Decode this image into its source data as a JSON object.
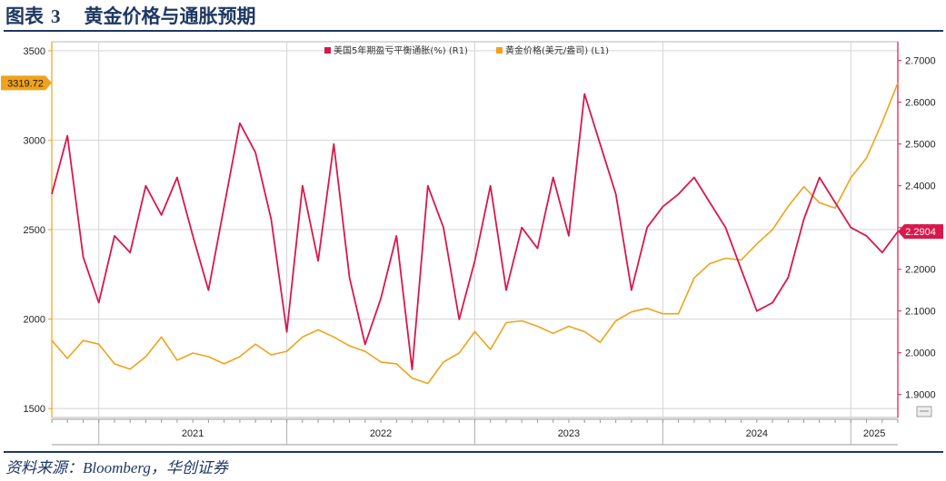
{
  "figure": {
    "number_label": "图表",
    "number": "3",
    "title": "黄金价格与通胀预期",
    "source": "资料来源：Bloomberg，华创证券"
  },
  "colors": {
    "gold": "#f0a31a",
    "inflation": "#d9184b",
    "title": "#1f3864",
    "tag_text": "#ffffff"
  },
  "chart_data": {
    "type": "line",
    "legend": [
      "美国5年期盈亏平衡通胀(%) (R1)",
      "黄金价格(美元/盎司) (L1)"
    ],
    "legend_position": "top-center",
    "grid": true,
    "x_tick_labels": [
      "2021",
      "2022",
      "2023",
      "2024",
      "2025"
    ],
    "x_range": [
      "2020-10",
      "2025-04"
    ],
    "left_axis": {
      "ticks": [
        1500,
        2000,
        2500,
        3000,
        3500
      ],
      "ylim": [
        1450,
        3550
      ],
      "last_value_tag": "3319.72"
    },
    "right_axis": {
      "ticks": [
        "1.9000",
        "2.0000",
        "2.1000",
        "2.2000",
        "2.3000",
        "2.4000",
        "2.5000",
        "2.6000",
        "2.7000"
      ],
      "ylim": [
        1.845,
        2.745
      ],
      "last_value_tag": "2.2904"
    },
    "series": [
      {
        "name": "黄金价格(美元/盎司) (L1)",
        "axis": "left",
        "color": "#f0a31a",
        "x": [
          "2020-10",
          "2020-11",
          "2020-12",
          "2021-01",
          "2021-02",
          "2021-03",
          "2021-04",
          "2021-05",
          "2021-06",
          "2021-07",
          "2021-08",
          "2021-09",
          "2021-10",
          "2021-11",
          "2021-12",
          "2022-01",
          "2022-02",
          "2022-03",
          "2022-04",
          "2022-05",
          "2022-06",
          "2022-07",
          "2022-08",
          "2022-09",
          "2022-10",
          "2022-11",
          "2022-12",
          "2023-01",
          "2023-02",
          "2023-03",
          "2023-04",
          "2023-05",
          "2023-06",
          "2023-07",
          "2023-08",
          "2023-09",
          "2023-10",
          "2023-11",
          "2023-12",
          "2024-01",
          "2024-02",
          "2024-03",
          "2024-04",
          "2024-05",
          "2024-06",
          "2024-07",
          "2024-08",
          "2024-09",
          "2024-10",
          "2024-11",
          "2024-12",
          "2025-01",
          "2025-02",
          "2025-03",
          "2025-04"
        ],
        "values": [
          1880,
          1780,
          1880,
          1860,
          1750,
          1720,
          1790,
          1900,
          1770,
          1810,
          1790,
          1750,
          1790,
          1860,
          1800,
          1820,
          1900,
          1940,
          1900,
          1850,
          1820,
          1760,
          1750,
          1670,
          1640,
          1760,
          1810,
          1930,
          1830,
          1980,
          1990,
          1960,
          1920,
          1960,
          1930,
          1870,
          1990,
          2040,
          2060,
          2030,
          2030,
          2230,
          2310,
          2340,
          2330,
          2420,
          2500,
          2630,
          2740,
          2650,
          2620,
          2790,
          2900,
          3100,
          3319.72
        ]
      },
      {
        "name": "美国5年期盈亏平衡通胀(%) (R1)",
        "axis": "right",
        "color": "#d9184b",
        "x": [
          "2020-10",
          "2020-11",
          "2020-12",
          "2021-01",
          "2021-02",
          "2021-03",
          "2021-04",
          "2021-05",
          "2021-06",
          "2021-07",
          "2021-08",
          "2021-09",
          "2021-10",
          "2021-11",
          "2021-12",
          "2022-01",
          "2022-02",
          "2022-03",
          "2022-04",
          "2022-05",
          "2022-06",
          "2022-07",
          "2022-08",
          "2022-09",
          "2022-10",
          "2022-11",
          "2022-12",
          "2023-01",
          "2023-02",
          "2023-03",
          "2023-04",
          "2023-05",
          "2023-06",
          "2023-07",
          "2023-08",
          "2023-09",
          "2023-10",
          "2023-11",
          "2023-12",
          "2024-01",
          "2024-02",
          "2024-03",
          "2024-04",
          "2024-05",
          "2024-06",
          "2024-07",
          "2024-08",
          "2024-09",
          "2024-10",
          "2024-11",
          "2024-12",
          "2025-01",
          "2025-02",
          "2025-03",
          "2025-04"
        ],
        "values": [
          2.38,
          2.52,
          2.23,
          2.12,
          2.28,
          2.24,
          2.4,
          2.33,
          2.42,
          2.28,
          2.15,
          2.35,
          2.55,
          2.48,
          2.32,
          2.05,
          2.4,
          2.22,
          2.5,
          2.18,
          2.02,
          2.13,
          2.28,
          1.96,
          2.4,
          2.3,
          2.08,
          2.22,
          2.4,
          2.15,
          2.3,
          2.25,
          2.42,
          2.28,
          2.62,
          2.5,
          2.38,
          2.15,
          2.3,
          2.35,
          2.38,
          2.42,
          2.36,
          2.3,
          2.2,
          2.1,
          2.12,
          2.18,
          2.32,
          2.42,
          2.36,
          2.3,
          2.28,
          2.24,
          2.2904
        ]
      }
    ]
  }
}
